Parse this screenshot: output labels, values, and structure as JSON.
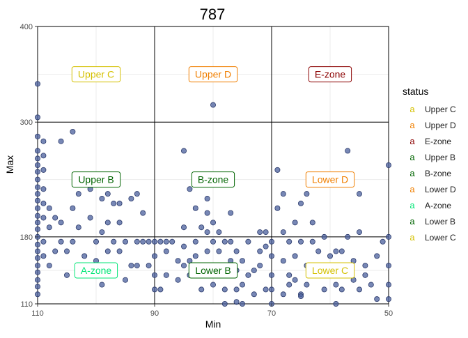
{
  "chart_data": {
    "type": "scatter",
    "title": "787",
    "xlabel": "Min",
    "ylabel": "Max",
    "xlim": [
      110,
      50
    ],
    "ylim": [
      110,
      400
    ],
    "x_reversed": true,
    "x_ticks": [
      110,
      90,
      70,
      50
    ],
    "y_ticks": [
      110,
      180,
      300,
      400
    ],
    "x_thresholds": [
      90,
      70
    ],
    "y_thresholds": [
      180,
      300
    ],
    "point_color": "#4a5f9c",
    "legend": {
      "title": "status",
      "position": "right",
      "entries": [
        {
          "label": "Upper C",
          "color": "#d4c000"
        },
        {
          "label": "Upper D",
          "color": "#f07f00"
        },
        {
          "label": "E-zone",
          "color": "#8b0000"
        },
        {
          "label": "Upper B",
          "color": "#006400"
        },
        {
          "label": "B-zone",
          "color": "#006400"
        },
        {
          "label": "Lower D",
          "color": "#f07f00"
        },
        {
          "label": "A-zone",
          "color": "#00e676"
        },
        {
          "label": "Lower B",
          "color": "#006400"
        },
        {
          "label": "Lower C",
          "color": "#d4c000"
        }
      ]
    },
    "zone_labels": [
      {
        "label": "Upper C",
        "x": 100,
        "y": 350,
        "color": "#d4c000"
      },
      {
        "label": "Upper D",
        "x": 80,
        "y": 350,
        "color": "#f07f00"
      },
      {
        "label": "E-zone",
        "x": 60,
        "y": 350,
        "color": "#8b0000"
      },
      {
        "label": "Upper B",
        "x": 100,
        "y": 240,
        "color": "#006400"
      },
      {
        "label": "B-zone",
        "x": 80,
        "y": 240,
        "color": "#006400"
      },
      {
        "label": "Lower D",
        "x": 60,
        "y": 240,
        "color": "#f07f00"
      },
      {
        "label": "A-zone",
        "x": 100,
        "y": 145,
        "color": "#00e676"
      },
      {
        "label": "Lower B",
        "x": 80,
        "y": 145,
        "color": "#006400"
      },
      {
        "label": "Lower C",
        "x": 60,
        "y": 145,
        "color": "#d4c000"
      }
    ],
    "points": [
      [
        110,
        340
      ],
      [
        110,
        305
      ],
      [
        110,
        285
      ],
      [
        110,
        270
      ],
      [
        110,
        262
      ],
      [
        110,
        255
      ],
      [
        110,
        248
      ],
      [
        110,
        240
      ],
      [
        110,
        232
      ],
      [
        110,
        225
      ],
      [
        110,
        218
      ],
      [
        110,
        210
      ],
      [
        110,
        202
      ],
      [
        110,
        195
      ],
      [
        110,
        188
      ],
      [
        110,
        180
      ],
      [
        110,
        172
      ],
      [
        110,
        165
      ],
      [
        110,
        158
      ],
      [
        110,
        150
      ],
      [
        110,
        143
      ],
      [
        110,
        135
      ],
      [
        110,
        128
      ],
      [
        110,
        120
      ],
      [
        109,
        280
      ],
      [
        109,
        265
      ],
      [
        109,
        250
      ],
      [
        109,
        230
      ],
      [
        109,
        215
      ],
      [
        109,
        200
      ],
      [
        109,
        175
      ],
      [
        109,
        160
      ],
      [
        108,
        190
      ],
      [
        108,
        210
      ],
      [
        108,
        150
      ],
      [
        107,
        165
      ],
      [
        107,
        200
      ],
      [
        106,
        280
      ],
      [
        106,
        195
      ],
      [
        106,
        175
      ],
      [
        105,
        140
      ],
      [
        105,
        165
      ],
      [
        104,
        290
      ],
      [
        104,
        175
      ],
      [
        104,
        210
      ],
      [
        103,
        190
      ],
      [
        103,
        225
      ],
      [
        102,
        160
      ],
      [
        101,
        230
      ],
      [
        101,
        200
      ],
      [
        101,
        145
      ],
      [
        100,
        175
      ],
      [
        100,
        155
      ],
      [
        99,
        220
      ],
      [
        99,
        185
      ],
      [
        99,
        130
      ],
      [
        98,
        225
      ],
      [
        98,
        195
      ],
      [
        98,
        165
      ],
      [
        97,
        175
      ],
      [
        97,
        215
      ],
      [
        97,
        150
      ],
      [
        96,
        215
      ],
      [
        96,
        195
      ],
      [
        96,
        165
      ],
      [
        95,
        175
      ],
      [
        95,
        135
      ],
      [
        94,
        220
      ],
      [
        94,
        150
      ],
      [
        93,
        225
      ],
      [
        93,
        175
      ],
      [
        93,
        150
      ],
      [
        92,
        205
      ],
      [
        92,
        175
      ],
      [
        91,
        175
      ],
      [
        91,
        150
      ],
      [
        90,
        175
      ],
      [
        90,
        160
      ],
      [
        90,
        140
      ],
      [
        90,
        125
      ],
      [
        89,
        175
      ],
      [
        89,
        125
      ],
      [
        88,
        165
      ],
      [
        88,
        175
      ],
      [
        88,
        140
      ],
      [
        87,
        175
      ],
      [
        86,
        155
      ],
      [
        86,
        135
      ],
      [
        85,
        270
      ],
      [
        85,
        190
      ],
      [
        85,
        170
      ],
      [
        85,
        150
      ],
      [
        84,
        230
      ],
      [
        84,
        155
      ],
      [
        84,
        140
      ],
      [
        83,
        210
      ],
      [
        83,
        175
      ],
      [
        83,
        160
      ],
      [
        82,
        190
      ],
      [
        82,
        150
      ],
      [
        82,
        125
      ],
      [
        81,
        220
      ],
      [
        81,
        205
      ],
      [
        81,
        185
      ],
      [
        81,
        165
      ],
      [
        80,
        318
      ],
      [
        80,
        195
      ],
      [
        80,
        175
      ],
      [
        80,
        150
      ],
      [
        80,
        130
      ],
      [
        79,
        165
      ],
      [
        79,
        185
      ],
      [
        79,
        140
      ],
      [
        78,
        125
      ],
      [
        78,
        175
      ],
      [
        78,
        110
      ],
      [
        77,
        205
      ],
      [
        77,
        155
      ],
      [
        77,
        175
      ],
      [
        76,
        165
      ],
      [
        76,
        145
      ],
      [
        76,
        125
      ],
      [
        75,
        155
      ],
      [
        75,
        130
      ],
      [
        75,
        110
      ],
      [
        74,
        175
      ],
      [
        74,
        140
      ],
      [
        73,
        145
      ],
      [
        73,
        120
      ],
      [
        72,
        185
      ],
      [
        72,
        165
      ],
      [
        72,
        150
      ],
      [
        71,
        125
      ],
      [
        71,
        170
      ],
      [
        71,
        185
      ],
      [
        70,
        110
      ],
      [
        70,
        175
      ],
      [
        70,
        160
      ],
      [
        70,
        140
      ],
      [
        70,
        125
      ],
      [
        69,
        250
      ],
      [
        69,
        210
      ],
      [
        68,
        225
      ],
      [
        68,
        185
      ],
      [
        68,
        155
      ],
      [
        68,
        120
      ],
      [
        67,
        140
      ],
      [
        67,
        175
      ],
      [
        66,
        195
      ],
      [
        66,
        160
      ],
      [
        66,
        135
      ],
      [
        65,
        215
      ],
      [
        65,
        175
      ],
      [
        65,
        120
      ],
      [
        64,
        225
      ],
      [
        64,
        150
      ],
      [
        64,
        130
      ],
      [
        63,
        195
      ],
      [
        63,
        175
      ],
      [
        62,
        150
      ],
      [
        62,
        165
      ],
      [
        61,
        180
      ],
      [
        61,
        125
      ],
      [
        60,
        160
      ],
      [
        60,
        140
      ],
      [
        59,
        165
      ],
      [
        59,
        130
      ],
      [
        59,
        110
      ],
      [
        58,
        165
      ],
      [
        58,
        240
      ],
      [
        58,
        125
      ],
      [
        57,
        270
      ],
      [
        57,
        180
      ],
      [
        56,
        155
      ],
      [
        56,
        135
      ],
      [
        55,
        185
      ],
      [
        55,
        225
      ],
      [
        55,
        125
      ],
      [
        54,
        150
      ],
      [
        54,
        140
      ],
      [
        53,
        130
      ],
      [
        52,
        160
      ],
      [
        52,
        115
      ],
      [
        51,
        175
      ],
      [
        50,
        255
      ],
      [
        50,
        180
      ],
      [
        50,
        150
      ],
      [
        50,
        130
      ],
      [
        50,
        115
      ],
      [
        67,
        130
      ],
      [
        76,
        112
      ],
      [
        65,
        118
      ]
    ]
  }
}
